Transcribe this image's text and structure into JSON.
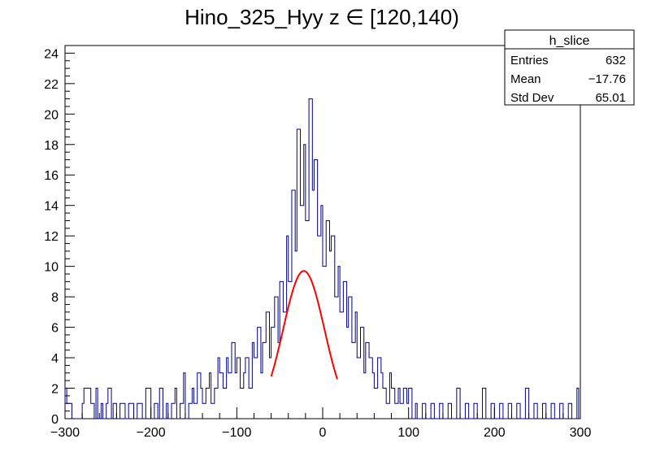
{
  "chart_data": {
    "type": "histogram",
    "title": "Hino_325_Hyy z  ∈ [120,140)",
    "xlabel": "",
    "ylabel": "",
    "xlim": [
      -300,
      300
    ],
    "ylim": [
      0,
      24.5
    ],
    "x_ticks": [
      "−300",
      "−200",
      "−100",
      "0",
      "100",
      "200",
      "300"
    ],
    "x_tick_values": [
      -300,
      -200,
      -100,
      0,
      100,
      200,
      300
    ],
    "y_ticks": [
      "0",
      "2",
      "4",
      "6",
      "8",
      "10",
      "12",
      "14",
      "16",
      "18",
      "20",
      "22",
      "24"
    ],
    "y_tick_values": [
      0,
      2,
      4,
      6,
      8,
      10,
      12,
      14,
      16,
      18,
      20,
      22,
      24
    ],
    "hist_color": "#000080",
    "fit_color": "#ff0000",
    "stats": {
      "name": "h_slice",
      "rows": [
        {
          "label": "Entries",
          "value": "632"
        },
        {
          "label": "Mean",
          "value": "−17.76"
        },
        {
          "label": "Std Dev",
          "value": "65.01"
        }
      ]
    },
    "fit": {
      "type": "gaussian",
      "amplitude": 9.7,
      "mean": -22,
      "sigma": 24,
      "range": [
        -60,
        17
      ]
    },
    "series": [
      {
        "bins_low_edge_x": [
          -300,
          -298,
          -292,
          -280,
          -278,
          -270,
          -266,
          -264,
          -262,
          -258,
          -256,
          -252,
          -250,
          -246,
          -244,
          -240,
          -236,
          -230,
          -226,
          -220,
          -216,
          -210,
          -206,
          -200,
          -196,
          -192,
          -190,
          -186,
          -182,
          -180,
          -176,
          -172,
          -170,
          -166,
          -162,
          -160,
          -156,
          -152,
          -150,
          -146,
          -142,
          -140,
          -136,
          -132,
          -130,
          -126,
          -122,
          -120,
          -116,
          -112,
          -110,
          -106,
          -102,
          -100,
          -96,
          -92,
          -90,
          -86,
          -82,
          -80,
          -76,
          -72,
          -70,
          -66,
          -62,
          -60,
          -56,
          -52,
          -50,
          -46,
          -42,
          -40,
          -36,
          -32,
          -30,
          -26,
          -22,
          -20,
          -16,
          -12,
          -10,
          -6,
          -2,
          0,
          4,
          8,
          10,
          14,
          18,
          20,
          24,
          28,
          30,
          34,
          38,
          40,
          44,
          48,
          50,
          54,
          58,
          60,
          64,
          68,
          70,
          74,
          78,
          80,
          84,
          88,
          90,
          94,
          98,
          100,
          104,
          108,
          110,
          116,
          120,
          126,
          130,
          136,
          140,
          146,
          150,
          156,
          160,
          166,
          170,
          176,
          180,
          186,
          190,
          196,
          200,
          206,
          210,
          216,
          220,
          226,
          230,
          236,
          240,
          246,
          250,
          256,
          260,
          266,
          270,
          276,
          280,
          286,
          290,
          296,
          298
        ],
        "values": [
          2,
          1,
          0,
          1,
          2,
          1,
          0,
          2,
          0,
          1,
          0,
          1,
          2,
          0,
          1,
          0,
          1,
          0,
          1,
          0,
          1,
          0,
          2,
          0,
          1,
          0,
          2,
          0,
          1,
          0,
          1,
          2,
          0,
          1,
          3,
          0,
          1,
          2,
          1,
          3,
          2,
          1,
          2,
          3,
          1,
          2,
          4,
          3,
          2,
          4,
          3,
          5,
          3,
          4,
          2,
          3,
          4,
          2,
          5,
          4,
          6,
          3,
          5,
          7,
          4,
          6,
          8,
          5,
          9,
          7,
          12,
          9,
          15,
          11,
          19,
          14,
          18,
          13,
          21,
          15,
          17,
          12,
          14,
          10,
          13,
          11,
          12,
          8,
          10,
          7,
          9,
          6,
          8,
          5,
          7,
          4,
          6,
          3,
          5,
          4,
          3,
          2,
          4,
          3,
          2,
          1,
          3,
          2,
          1,
          2,
          1,
          2,
          1,
          2,
          0,
          1,
          0,
          1,
          0,
          1,
          0,
          1,
          0,
          1,
          0,
          2,
          0,
          1,
          0,
          1,
          0,
          2,
          0,
          1,
          0,
          1,
          0,
          1,
          0,
          1,
          0,
          2,
          0,
          1,
          0,
          1,
          0,
          1,
          0,
          1,
          0,
          1,
          0,
          2,
          0
        ]
      }
    ]
  }
}
